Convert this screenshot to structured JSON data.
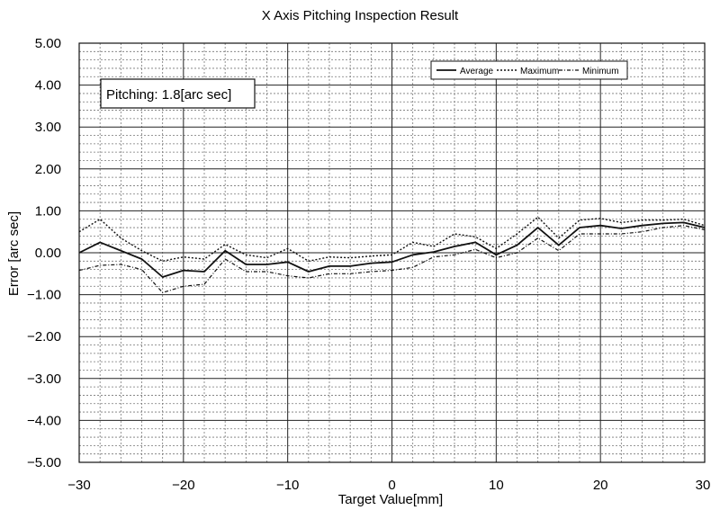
{
  "chart_data": {
    "type": "line",
    "title": "X Axis Pitching Inspection Result",
    "xlabel": "Target Value[mm]",
    "ylabel": "Error [arc sec]",
    "xlim": [
      -30,
      30
    ],
    "ylim": [
      -5,
      5
    ],
    "xticks": [
      -30,
      -20,
      -10,
      0,
      10,
      20,
      30
    ],
    "xtick_labels": [
      "−30",
      "−20",
      "−10",
      "0",
      "10",
      "20",
      "30"
    ],
    "yticks": [
      5,
      4,
      3,
      2,
      1,
      0,
      -1,
      -2,
      -3,
      -4,
      -5
    ],
    "ytick_labels": [
      "5.00",
      "4.00",
      "3.00",
      "2.00",
      "1.00",
      "0.00",
      "−1.00",
      "−2.00",
      "−3.00",
      "−4.00",
      "−5.00"
    ],
    "grid": true,
    "legend_position": "top-right",
    "annotation": "Pitching: 1.8[arc sec]",
    "x": [
      -30,
      -28,
      -26,
      -24,
      -22,
      -20,
      -18,
      -16,
      -14,
      -12,
      -10,
      -8,
      -6,
      -4,
      -2,
      0,
      2,
      4,
      6,
      8,
      10,
      12,
      14,
      16,
      18,
      20,
      22,
      24,
      26,
      28,
      30
    ],
    "series": [
      {
        "name": "Average",
        "style": "solid",
        "values": [
          0.0,
          0.25,
          0.05,
          -0.15,
          -0.58,
          -0.42,
          -0.45,
          0.05,
          -0.28,
          -0.28,
          -0.22,
          -0.45,
          -0.32,
          -0.32,
          -0.25,
          -0.22,
          -0.05,
          0.02,
          0.15,
          0.25,
          -0.05,
          0.18,
          0.6,
          0.18,
          0.6,
          0.65,
          0.58,
          0.65,
          0.7,
          0.72,
          0.6
        ]
      },
      {
        "name": "Maximum",
        "style": "dotted",
        "values": [
          0.5,
          0.8,
          0.35,
          0.05,
          -0.2,
          -0.1,
          -0.15,
          0.2,
          -0.05,
          -0.12,
          0.1,
          -0.2,
          -0.1,
          -0.12,
          -0.08,
          -0.05,
          0.25,
          0.15,
          0.45,
          0.38,
          0.1,
          0.45,
          0.85,
          0.35,
          0.78,
          0.82,
          0.72,
          0.78,
          0.78,
          0.8,
          0.65
        ]
      },
      {
        "name": "Minimum",
        "style": "dash-dot",
        "values": [
          -0.42,
          -0.3,
          -0.28,
          -0.4,
          -0.95,
          -0.8,
          -0.75,
          -0.15,
          -0.45,
          -0.45,
          -0.55,
          -0.6,
          -0.5,
          -0.5,
          -0.45,
          -0.42,
          -0.35,
          -0.1,
          -0.05,
          0.08,
          -0.12,
          0.0,
          0.35,
          0.05,
          0.45,
          0.45,
          0.45,
          0.5,
          0.6,
          0.65,
          0.55
        ]
      }
    ]
  }
}
